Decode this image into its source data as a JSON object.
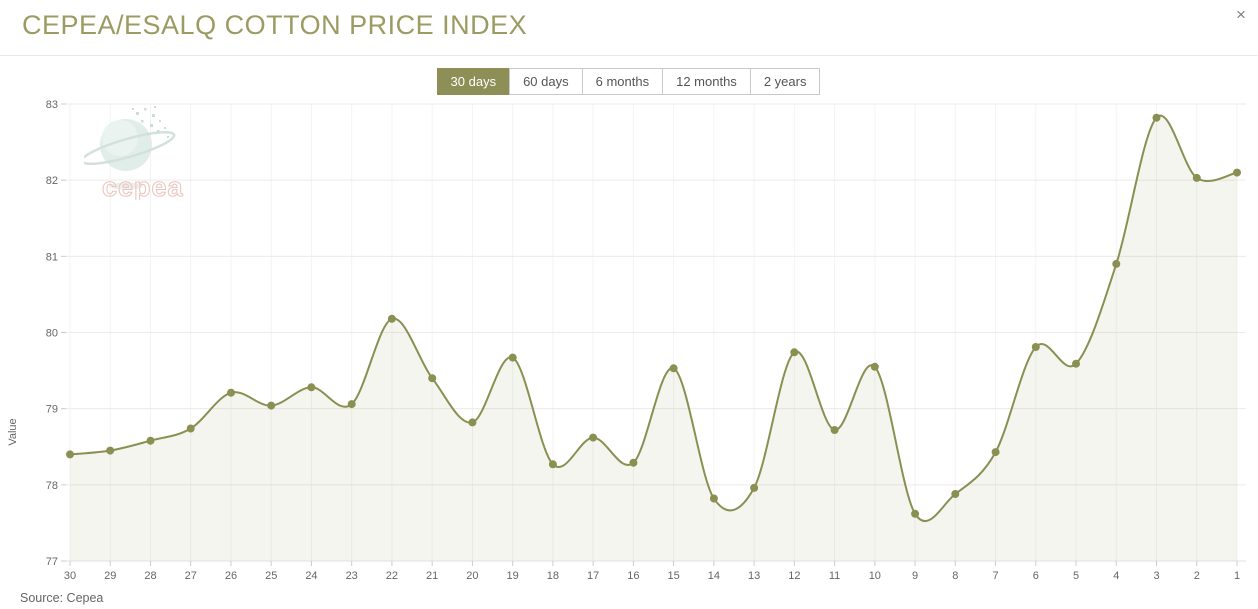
{
  "window": {
    "close_icon": "×"
  },
  "header": {
    "title": "CEPEA/ESALQ COTTON PRICE INDEX"
  },
  "range_buttons": [
    {
      "label": "30 days",
      "active": true
    },
    {
      "label": "60 days",
      "active": false
    },
    {
      "label": "6 months",
      "active": false
    },
    {
      "label": "12 months",
      "active": false
    },
    {
      "label": "2 years",
      "active": false
    }
  ],
  "logo": {
    "text": "cepea"
  },
  "footer": {
    "source": "Source: Cepea"
  },
  "chart_data": {
    "type": "area",
    "title": "CEPEA/ESALQ COTTON PRICE INDEX",
    "xlabel": "",
    "ylabel": "Value",
    "ylim": [
      77,
      83
    ],
    "y_ticks": [
      77,
      78,
      79,
      80,
      81,
      82,
      83
    ],
    "grid": true,
    "legend": false,
    "categories": [
      "30",
      "29",
      "28",
      "27",
      "26",
      "25",
      "24",
      "23",
      "22",
      "21",
      "20",
      "19",
      "18",
      "17",
      "16",
      "15",
      "14",
      "13",
      "12",
      "11",
      "10",
      "9",
      "8",
      "7",
      "6",
      "5",
      "4",
      "3",
      "2",
      "1"
    ],
    "values": [
      78.4,
      78.45,
      78.58,
      78.74,
      79.21,
      79.04,
      79.28,
      79.06,
      80.18,
      79.4,
      78.82,
      79.67,
      78.27,
      78.62,
      78.29,
      79.53,
      77.82,
      77.96,
      79.74,
      78.72,
      79.55,
      77.62,
      77.88,
      78.43,
      79.81,
      79.59,
      80.9,
      82.82,
      82.03,
      82.1
    ],
    "colors": {
      "line": "#8a8f52",
      "marker": "#8a8f52",
      "fill": "rgba(138,143,82,0.09)",
      "grid_h": "#efe9e9",
      "grid_v": "#f3f3f3",
      "axis": "#e0e0e0",
      "tick": "#cccccc",
      "tick_label": "#666666",
      "accent": "#8e8e57",
      "title": "#9b9b63"
    }
  }
}
